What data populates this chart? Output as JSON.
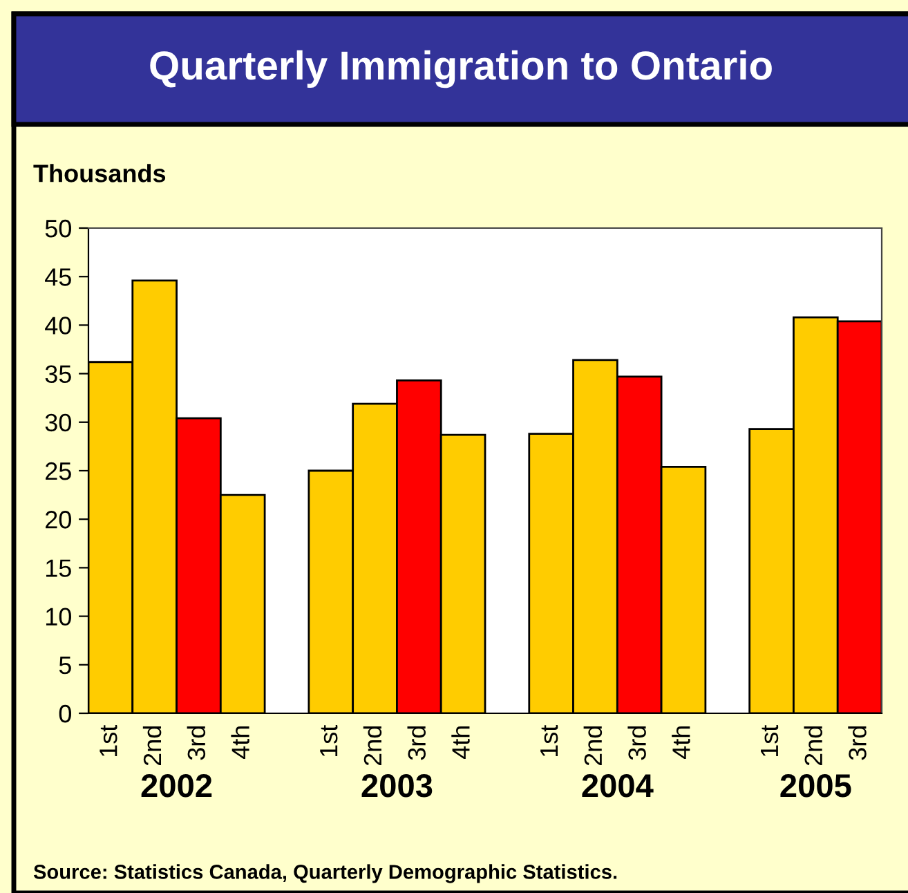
{
  "chart_data": {
    "type": "bar",
    "title": "Quarterly Immigration to Ontario",
    "ylabel": "Thousands",
    "categories": [
      "1st",
      "2nd",
      "3rd",
      "4th",
      null,
      "1st",
      "2nd",
      "3rd",
      "4th",
      null,
      "1st",
      "2nd",
      "3rd",
      "4th",
      null,
      "1st",
      "2nd",
      "3rd"
    ],
    "values": [
      36.2,
      44.6,
      30.4,
      22.5,
      null,
      25.0,
      31.9,
      34.3,
      28.7,
      null,
      28.8,
      36.4,
      34.7,
      25.4,
      null,
      29.3,
      40.8,
      40.4
    ],
    "colors": [
      "#ffcc00",
      "#ffcc00",
      "#ff0000",
      "#ffcc00",
      null,
      "#ffcc00",
      "#ffcc00",
      "#ff0000",
      "#ffcc00",
      null,
      "#ffcc00",
      "#ffcc00",
      "#ff0000",
      "#ffcc00",
      null,
      "#ffcc00",
      "#ffcc00",
      "#ff0000"
    ],
    "ylim": [
      0,
      50
    ],
    "yticks": [
      0,
      5,
      10,
      15,
      20,
      25,
      30,
      35,
      40,
      45,
      50
    ],
    "grid": false,
    "annotations": [
      "2002",
      "2003",
      "2004",
      "2005",
      "Source: Statistics Canada, Quarterly Demographic Statistics."
    ]
  }
}
